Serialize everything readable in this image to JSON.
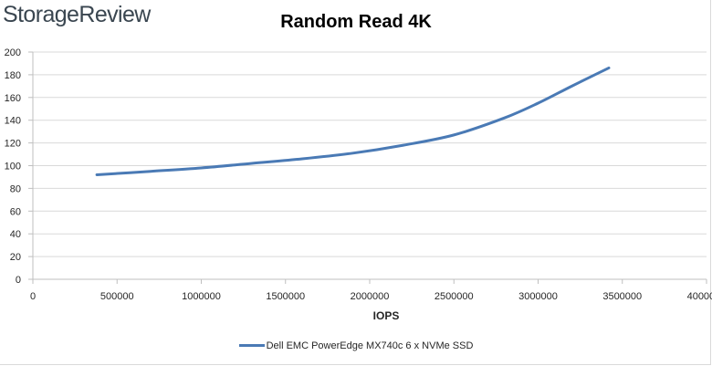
{
  "brand": {
    "logo_text": "StorageReview"
  },
  "chart_data": {
    "type": "line",
    "title": "Random Read 4K",
    "xlabel": "IOPS",
    "ylabel": "",
    "xlim": [
      0,
      4000000
    ],
    "ylim": [
      0,
      200
    ],
    "x_ticks": [
      0,
      500000,
      1000000,
      1500000,
      2000000,
      2500000,
      3000000,
      3500000,
      4000000
    ],
    "y_ticks": [
      0,
      20,
      40,
      60,
      80,
      100,
      120,
      140,
      160,
      180,
      200
    ],
    "grid": "horizontal",
    "legend_position": "bottom",
    "series": [
      {
        "name": "Dell EMC PowerEdge MX740c 6 x NVMe SSD",
        "color": "#4a7ab5",
        "x": [
          380000,
          700000,
          1000000,
          1300000,
          1600000,
          1900000,
          2200000,
          2500000,
          2800000,
          3000000,
          3200000,
          3420000
        ],
        "y": [
          92,
          95,
          98,
          102,
          106,
          111,
          118,
          127,
          142,
          155,
          170,
          186
        ]
      }
    ]
  }
}
